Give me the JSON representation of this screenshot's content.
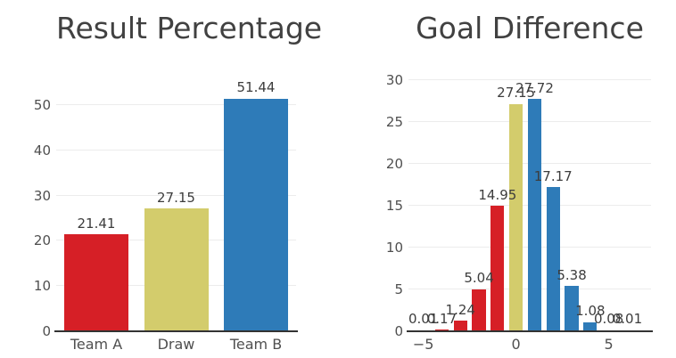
{
  "figure": {
    "background": "#ffffff",
    "title_color": "#414141",
    "tick_color": "#4f4f4f",
    "label_color": "#3d3d3d",
    "axis_color": "#333333",
    "grid_color": "#ececec"
  },
  "chart_data": [
    {
      "type": "bar",
      "title": "Result Percentage",
      "categories": [
        "Team A",
        "Draw",
        "Team B"
      ],
      "values": [
        21.41,
        27.15,
        51.44
      ],
      "value_labels": [
        "21.41",
        "27.15",
        "51.44"
      ],
      "bar_colors": [
        "#d61f26",
        "#d3cc6c",
        "#2e7bb8"
      ],
      "xlabel": "",
      "ylabel": "",
      "ylim": [
        0,
        56.5
      ],
      "yticks": [
        0,
        10,
        20,
        30,
        40,
        50
      ],
      "grid": true,
      "legend": "none"
    },
    {
      "type": "bar",
      "title": "Goal Difference",
      "x": [
        -5,
        -4,
        -3,
        -2,
        -1,
        0,
        1,
        2,
        3,
        4,
        5,
        6
      ],
      "values": [
        0.01,
        0.17,
        1.24,
        5.04,
        14.95,
        27.15,
        27.72,
        17.17,
        5.38,
        1.08,
        0.08,
        0.01
      ],
      "value_labels": [
        "0.01",
        "0.17",
        "1.24",
        "5.04",
        "14.95",
        "27.15",
        "27.72",
        "17.17",
        "5.38",
        "1.08",
        "0.08",
        "0.01"
      ],
      "bar_colors": [
        "#d61f26",
        "#d61f26",
        "#d61f26",
        "#d61f26",
        "#d61f26",
        "#d3cc6c",
        "#2e7bb8",
        "#2e7bb8",
        "#2e7bb8",
        "#2e7bb8",
        "#2e7bb8",
        "#2e7bb8"
      ],
      "xlabel": "",
      "ylabel": "",
      "ylim": [
        0,
        30.5
      ],
      "yticks": [
        0,
        5,
        10,
        15,
        20,
        25,
        30
      ],
      "xticks": [
        {
          "at_index": 0,
          "label": "−5"
        },
        {
          "at_index": 5,
          "label": "0"
        },
        {
          "at_index": 10,
          "label": "5"
        }
      ],
      "grid": true,
      "legend": "none"
    }
  ]
}
